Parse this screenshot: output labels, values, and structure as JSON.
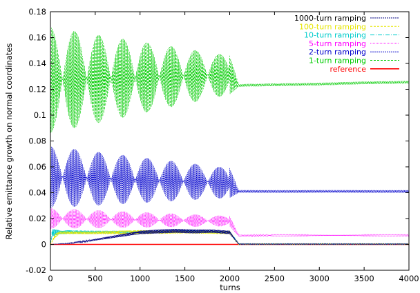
{
  "chart_data": {
    "type": "line",
    "xlabel": "turns",
    "ylabel": "Relative emittance growth on normal coordinates",
    "xlim": [
      0,
      4000
    ],
    "ylim": [
      -0.02,
      0.18
    ],
    "x_ticks": [
      0,
      500,
      1000,
      1500,
      2000,
      2500,
      3000,
      3500,
      4000
    ],
    "y_ticks": [
      -0.02,
      0,
      0.02,
      0.04,
      0.06,
      0.08,
      0.1,
      0.12,
      0.14,
      0.16,
      0.18
    ],
    "x_tick_labels": [
      "0",
      "500",
      "1000",
      "1500",
      "2000",
      "2500",
      "3000",
      "3500",
      "4000"
    ],
    "y_tick_labels": [
      "-0.02",
      "0",
      "0.02",
      "0.04",
      "0.06",
      "0.08",
      "0.1",
      "0.12",
      "0.14",
      "0.16",
      "0.18"
    ],
    "grid": false,
    "legend_position": "top-right",
    "series": [
      {
        "name": "1000-turn ramping",
        "color": "#000080",
        "dash": "2,1",
        "x": [
          0,
          200,
          400,
          600,
          800,
          1000,
          1200,
          1400,
          1600,
          1800,
          2000,
          2100,
          2500,
          3000,
          3500,
          4000
        ],
        "lower": [
          0,
          0.0005,
          0.002,
          0.004,
          0.006,
          0.008,
          0.0085,
          0.009,
          0.0085,
          0.009,
          0.008,
          0,
          0,
          0,
          0,
          0
        ],
        "upper": [
          0,
          0.001,
          0.003,
          0.0055,
          0.008,
          0.0105,
          0.0115,
          0.012,
          0.0115,
          0.0115,
          0.0105,
          0.0005,
          0.0005,
          0.0005,
          0.0005,
          0.0005
        ]
      },
      {
        "name": "100-turn ramping",
        "color": "#e6e600",
        "dash": "3,2",
        "x": [
          0,
          50,
          100,
          500,
          1000,
          1500,
          2000,
          2100,
          2500,
          3000,
          3500,
          4000
        ],
        "lower": [
          0,
          0.005,
          0.008,
          0.008,
          0.008,
          0.0085,
          0.008,
          0,
          0,
          0,
          0,
          0
        ],
        "upper": [
          0,
          0.008,
          0.01,
          0.01,
          0.011,
          0.0105,
          0.0105,
          0.0005,
          0.0005,
          0.0005,
          0.0005,
          0.0005
        ]
      },
      {
        "name": "10-turn ramping",
        "color": "#00cccc",
        "dash": "6,2,1,2",
        "x": [
          0,
          20,
          100,
          500,
          1000,
          1500,
          2000,
          2100,
          2500,
          3000,
          3500,
          4000
        ],
        "lower": [
          0,
          0.006,
          0.008,
          0.0085,
          0.0085,
          0.009,
          0.0085,
          0,
          0,
          0,
          0,
          0
        ],
        "upper": [
          0,
          0.012,
          0.011,
          0.0105,
          0.0105,
          0.011,
          0.0105,
          0.0005,
          0.0005,
          0.0005,
          0.0005,
          0.0005
        ]
      },
      {
        "name": "5-turn ramping",
        "color": "#ff00ff",
        "dash": "1,1",
        "x": [
          0,
          2000,
          2100,
          2500,
          3000,
          3500,
          4000
        ],
        "lower": [
          0.012,
          0.014,
          0.006,
          0.0065,
          0.0065,
          0.0065,
          0.0065
        ],
        "upper": [
          0.028,
          0.022,
          0.0075,
          0.0075,
          0.0075,
          0.0075,
          0.0075
        ],
        "oscillation_period": 270
      },
      {
        "name": "2-turn ramping",
        "color": "#0000cc",
        "dash": "2,1",
        "x": [
          0,
          2000,
          2100,
          2500,
          3000,
          3500,
          4000
        ],
        "lower": [
          0.028,
          0.036,
          0.04,
          0.04,
          0.04,
          0.04,
          0.04
        ],
        "upper": [
          0.076,
          0.059,
          0.042,
          0.042,
          0.042,
          0.042,
          0.042
        ],
        "oscillation_period": 270
      },
      {
        "name": "1-turn ramping",
        "color": "#00cc00",
        "dash": "3,2",
        "x": [
          0,
          2000,
          2100,
          2500,
          3000,
          3500,
          4000
        ],
        "lower": [
          0.086,
          0.116,
          0.122,
          0.1225,
          0.123,
          0.124,
          0.1245
        ],
        "upper": [
          0.168,
          0.146,
          0.124,
          0.1245,
          0.125,
          0.126,
          0.1265
        ],
        "oscillation_period": 270
      },
      {
        "name": "reference",
        "color": "#ff0000",
        "dash": "",
        "x": [
          0,
          4000
        ],
        "lower": [
          0,
          0
        ],
        "upper": [
          0,
          0
        ]
      }
    ]
  }
}
